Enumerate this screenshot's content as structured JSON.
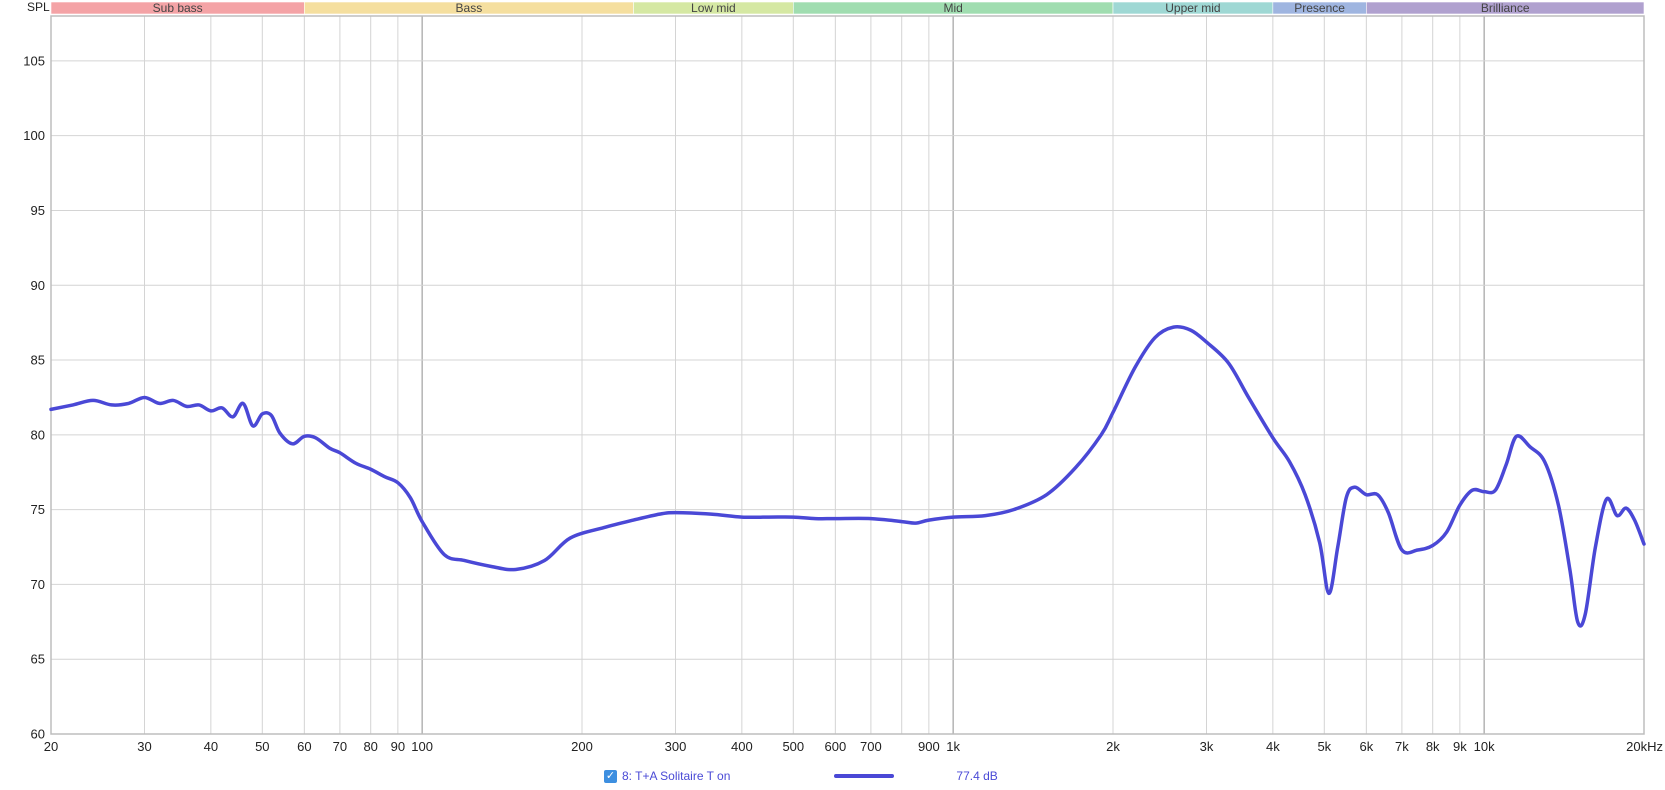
{
  "colors": {
    "curve": "#4a48d6",
    "grid": "#d4d4d4",
    "decade_grid": "#a8a8a8",
    "plot_border": "#bdbdbd"
  },
  "chart_data": {
    "type": "line",
    "ylabel": "SPL",
    "xscale": "log",
    "xlim": [
      20,
      20000
    ],
    "ylim": [
      60,
      108
    ],
    "grid": true,
    "x_ticks": [
      20,
      30,
      40,
      50,
      60,
      70,
      80,
      90,
      100,
      200,
      300,
      400,
      500,
      600,
      700,
      900,
      1000,
      2000,
      3000,
      4000,
      5000,
      6000,
      7000,
      8000,
      9000,
      10000,
      20000
    ],
    "x_tick_labels": [
      "20",
      "30",
      "40",
      "50",
      "60",
      "70",
      "80",
      "90",
      "100",
      "200",
      "300",
      "400",
      "500",
      "600",
      "700",
      "900",
      "1k",
      "2k",
      "3k",
      "4k",
      "5k",
      "6k",
      "7k",
      "8k",
      "9k",
      "10k",
      "20kHz"
    ],
    "y_ticks": [
      60,
      65,
      70,
      75,
      80,
      85,
      90,
      95,
      100,
      105
    ],
    "y_tick_labels": [
      "60",
      "65",
      "70",
      "75",
      "80",
      "85",
      "90",
      "95",
      "100",
      "105"
    ],
    "bands": [
      {
        "label": "Sub bass",
        "from": 20,
        "to": 60,
        "color": "#f4a3a6"
      },
      {
        "label": "Bass",
        "from": 60,
        "to": 250,
        "color": "#f5df9f"
      },
      {
        "label": "Low mid",
        "from": 250,
        "to": 500,
        "color": "#d5e8a3"
      },
      {
        "label": "Mid",
        "from": 500,
        "to": 2000,
        "color": "#a0ddb0"
      },
      {
        "label": "Upper mid",
        "from": 2000,
        "to": 4000,
        "color": "#9fd8d4"
      },
      {
        "label": "Presence",
        "from": 4000,
        "to": 6000,
        "color": "#9fb5e0"
      },
      {
        "label": "Brilliance",
        "from": 6000,
        "to": 20000,
        "color": "#b0a1cf"
      }
    ],
    "series": [
      {
        "name": "8: T+A Solitaire T on",
        "points": [
          [
            20,
            81.7
          ],
          [
            22,
            82.0
          ],
          [
            24,
            82.3
          ],
          [
            26,
            82.0
          ],
          [
            28,
            82.1
          ],
          [
            30,
            82.5
          ],
          [
            32,
            82.1
          ],
          [
            34,
            82.3
          ],
          [
            36,
            81.9
          ],
          [
            38,
            82.0
          ],
          [
            40,
            81.6
          ],
          [
            42,
            81.8
          ],
          [
            44,
            81.2
          ],
          [
            46,
            82.1
          ],
          [
            48,
            80.6
          ],
          [
            50,
            81.4
          ],
          [
            52,
            81.3
          ],
          [
            54,
            80.1
          ],
          [
            57,
            79.4
          ],
          [
            60,
            79.9
          ],
          [
            63,
            79.8
          ],
          [
            67,
            79.1
          ],
          [
            70,
            78.8
          ],
          [
            75,
            78.1
          ],
          [
            80,
            77.7
          ],
          [
            85,
            77.2
          ],
          [
            90,
            76.8
          ],
          [
            95,
            75.8
          ],
          [
            100,
            74.2
          ],
          [
            110,
            72.0
          ],
          [
            120,
            71.6
          ],
          [
            135,
            71.2
          ],
          [
            150,
            71.0
          ],
          [
            170,
            71.6
          ],
          [
            190,
            73.1
          ],
          [
            220,
            73.8
          ],
          [
            250,
            74.3
          ],
          [
            280,
            74.7
          ],
          [
            300,
            74.8
          ],
          [
            350,
            74.7
          ],
          [
            400,
            74.5
          ],
          [
            450,
            74.5
          ],
          [
            500,
            74.5
          ],
          [
            550,
            74.4
          ],
          [
            600,
            74.4
          ],
          [
            700,
            74.4
          ],
          [
            800,
            74.2
          ],
          [
            850,
            74.1
          ],
          [
            900,
            74.3
          ],
          [
            1000,
            74.5
          ],
          [
            1150,
            74.6
          ],
          [
            1300,
            75.0
          ],
          [
            1500,
            76.0
          ],
          [
            1700,
            77.8
          ],
          [
            1900,
            80.0
          ],
          [
            2000,
            81.5
          ],
          [
            2200,
            84.5
          ],
          [
            2400,
            86.5
          ],
          [
            2600,
            87.2
          ],
          [
            2800,
            87.0
          ],
          [
            3000,
            86.2
          ],
          [
            3300,
            84.8
          ],
          [
            3600,
            82.5
          ],
          [
            4000,
            79.8
          ],
          [
            4300,
            78.2
          ],
          [
            4600,
            76.0
          ],
          [
            4900,
            72.8
          ],
          [
            5100,
            69.4
          ],
          [
            5300,
            72.5
          ],
          [
            5500,
            75.8
          ],
          [
            5700,
            76.5
          ],
          [
            6000,
            76.0
          ],
          [
            6300,
            76.0
          ],
          [
            6600,
            74.8
          ],
          [
            7000,
            72.3
          ],
          [
            7500,
            72.3
          ],
          [
            8000,
            72.6
          ],
          [
            8500,
            73.5
          ],
          [
            9000,
            75.3
          ],
          [
            9500,
            76.3
          ],
          [
            10000,
            76.2
          ],
          [
            10500,
            76.3
          ],
          [
            11000,
            78.0
          ],
          [
            11500,
            79.9
          ],
          [
            12200,
            79.2
          ],
          [
            13000,
            78.2
          ],
          [
            13800,
            75.3
          ],
          [
            14500,
            71.0
          ],
          [
            15000,
            67.5
          ],
          [
            15500,
            68.0
          ],
          [
            16200,
            72.5
          ],
          [
            17000,
            75.7
          ],
          [
            17800,
            74.6
          ],
          [
            18500,
            75.1
          ],
          [
            19200,
            74.3
          ],
          [
            20000,
            72.7
          ]
        ]
      }
    ]
  },
  "legend": {
    "entry_label": "8: T+A Solitaire T on",
    "checkbox_mark": "✓",
    "value": "77.4 dB"
  }
}
